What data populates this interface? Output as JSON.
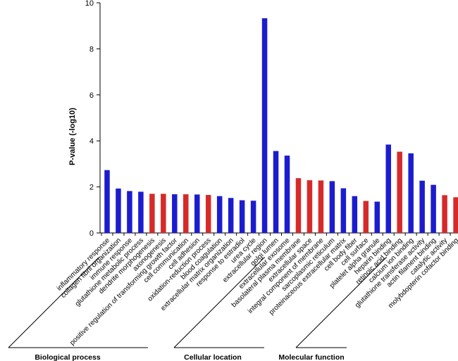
{
  "chart_data": {
    "type": "bar",
    "title": "",
    "xlabel": "",
    "ylabel": "P-value (-log10)",
    "ylim": [
      0,
      10
    ],
    "yticks": [
      0,
      2,
      4,
      6,
      8,
      10
    ],
    "grid": false,
    "colors": {
      "blue": "#1c1ccf",
      "red": "#d62a2a"
    },
    "bars": [
      {
        "label": "inflammatory response",
        "value": 2.73,
        "color": "blue"
      },
      {
        "label": "collagen fibril organization",
        "value": 1.93,
        "color": "blue"
      },
      {
        "label": "immune response",
        "value": 1.82,
        "color": "blue"
      },
      {
        "label": "glutathione metabolic process",
        "value": 1.79,
        "color": "blue"
      },
      {
        "label": "dendrite morphogenesis",
        "value": 1.7,
        "color": "red"
      },
      {
        "label": "axonogenesis",
        "value": 1.7,
        "color": "red"
      },
      {
        "label": "positive regulation of transforming growth factor",
        "value": 1.68,
        "color": "blue"
      },
      {
        "label": "cell communication",
        "value": 1.68,
        "color": "red"
      },
      {
        "label": "cell adhesion",
        "value": 1.67,
        "color": "blue"
      },
      {
        "label": "oxidation-reduction process",
        "value": 1.65,
        "color": "red"
      },
      {
        "label": "blood coagulation",
        "value": 1.6,
        "color": "blue"
      },
      {
        "label": "extracellular matrix organization",
        "value": 1.52,
        "color": "blue"
      },
      {
        "label": "response to estradiol",
        "value": 1.42,
        "color": "blue"
      },
      {
        "label": "urea cycle",
        "value": 1.4,
        "color": "blue"
      },
      {
        "label": "extracellular region",
        "value": 9.33,
        "color": "blue"
      },
      {
        "label": "golgi lumen",
        "value": 3.56,
        "color": "blue"
      },
      {
        "label": "extracellular exosome",
        "value": 3.36,
        "color": "blue"
      },
      {
        "label": "basolateral plasma membrane",
        "value": 2.38,
        "color": "red"
      },
      {
        "label": "extracellular space",
        "value": 2.29,
        "color": "red"
      },
      {
        "label": "integral component of membrane",
        "value": 2.28,
        "color": "red"
      },
      {
        "label": "sarcoplasmic reticulum",
        "value": 2.25,
        "color": "blue"
      },
      {
        "label": "proteinaceous extracellular matrix",
        "value": 1.94,
        "color": "blue"
      },
      {
        "label": "cell body fiber",
        "value": 1.6,
        "color": "blue"
      },
      {
        "label": "cell surface",
        "value": 1.39,
        "color": "red"
      },
      {
        "label": "platelet alpha granule",
        "value": 1.36,
        "color": "blue"
      },
      {
        "label": "heparin binding",
        "value": 3.84,
        "color": "blue"
      },
      {
        "label": "retinoic acid binding",
        "value": 3.53,
        "color": "red"
      },
      {
        "label": "calcium ion binding",
        "value": 3.46,
        "color": "blue"
      },
      {
        "label": "glutathione transferase activity",
        "value": 2.27,
        "color": "blue"
      },
      {
        "label": "actin filament binding",
        "value": 2.09,
        "color": "blue"
      },
      {
        "label": "catalytic activity",
        "value": 1.64,
        "color": "red"
      },
      {
        "label": "molybdopterin cofactor binding",
        "value": 1.55,
        "color": "red"
      }
    ],
    "groups": [
      {
        "name": "Biological process",
        "first": 0,
        "last": 13
      },
      {
        "name": "Cellular location",
        "first": 14,
        "last": 24
      },
      {
        "name": "Molecular function",
        "first": 25,
        "last": 31
      }
    ]
  }
}
